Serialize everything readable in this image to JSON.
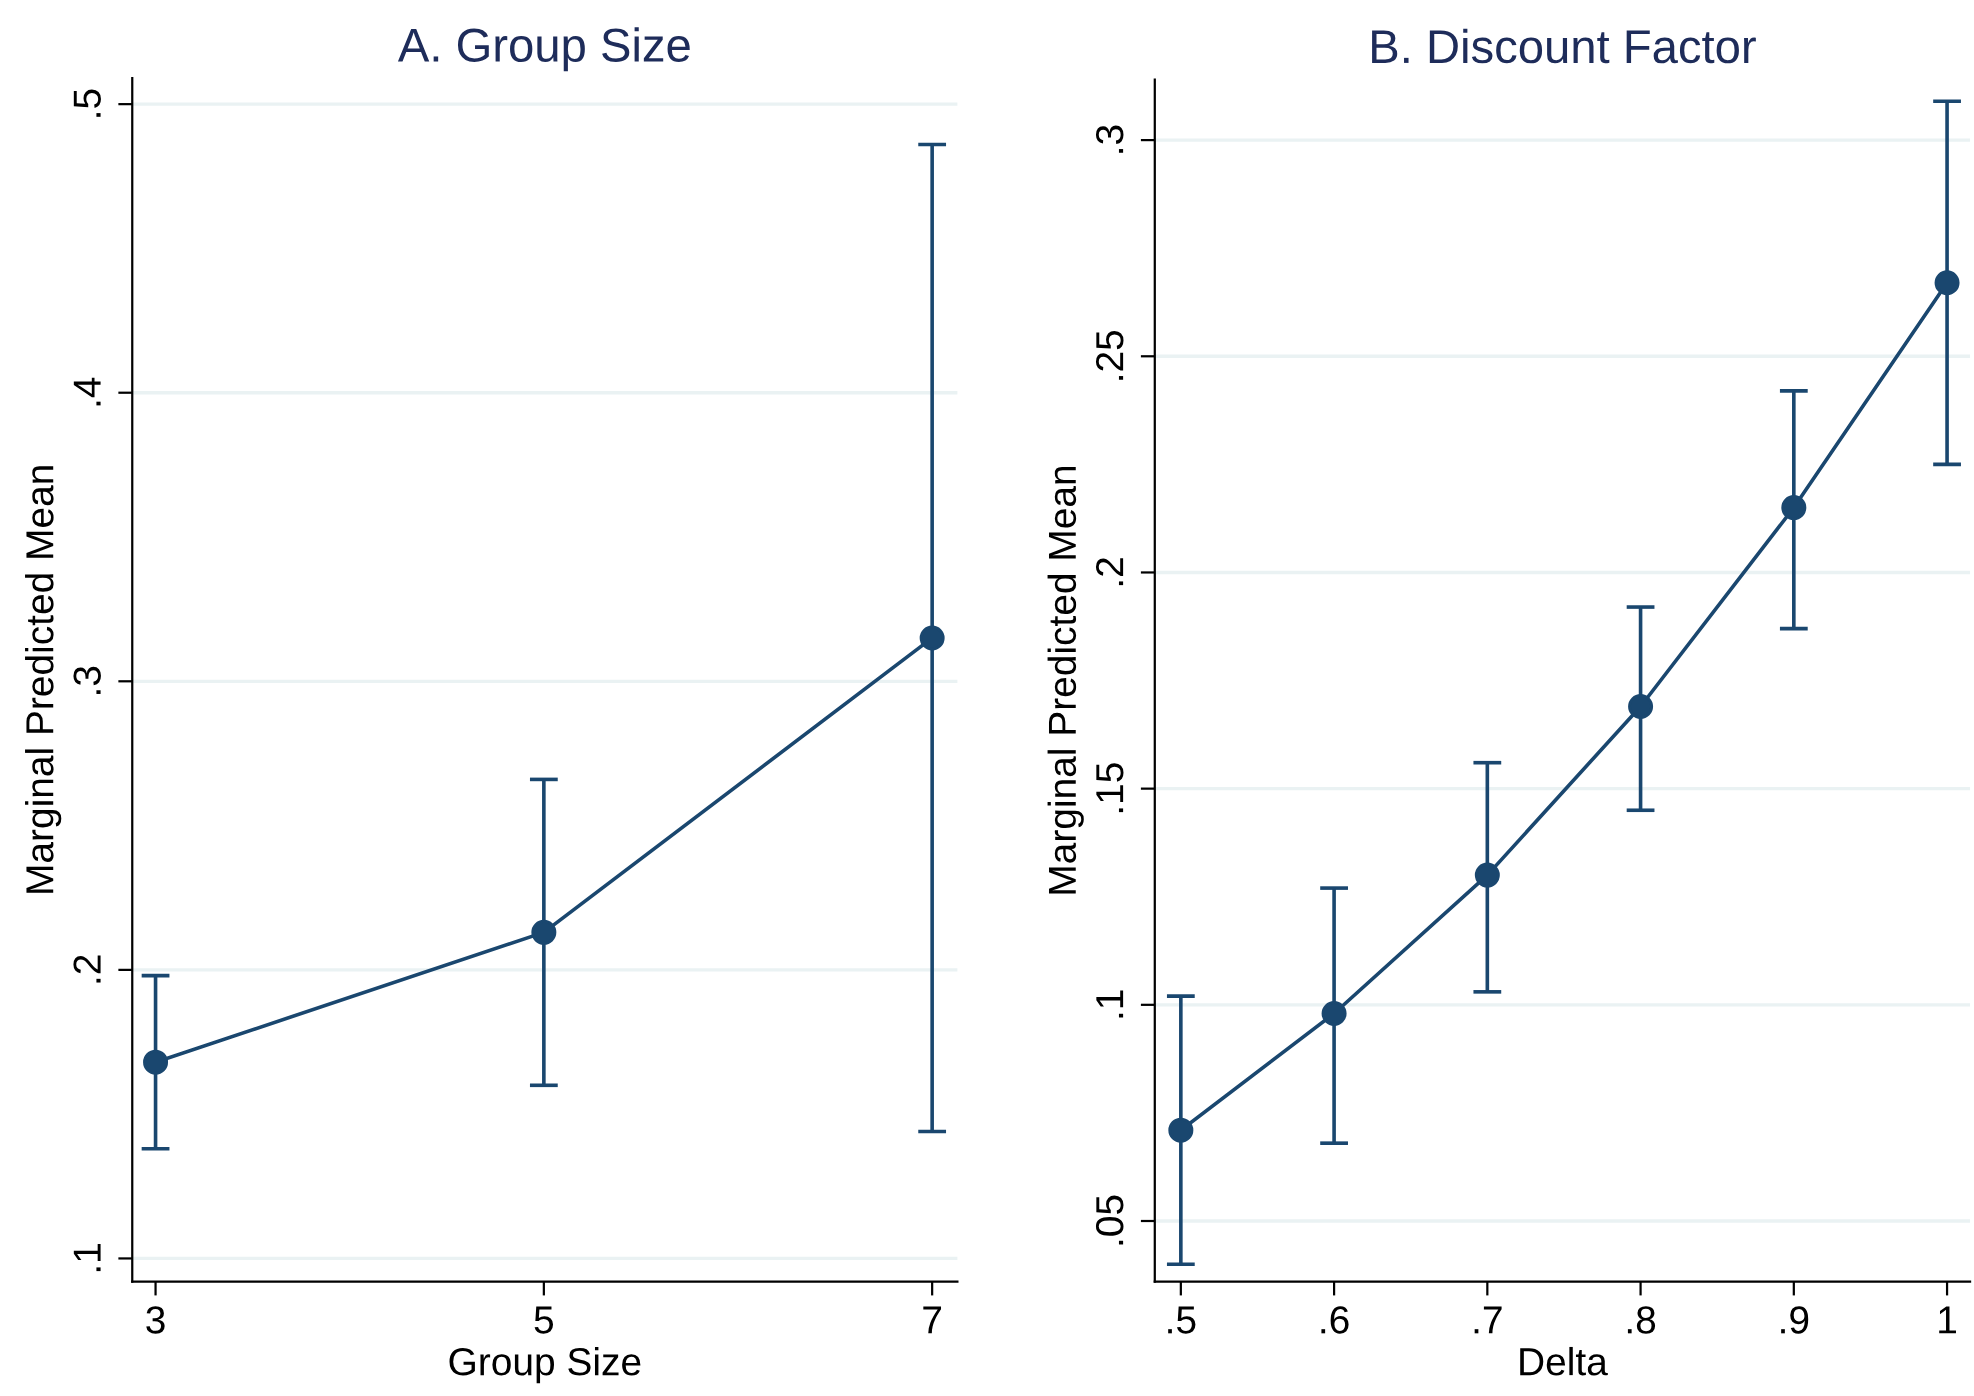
{
  "chart_data": [
    {
      "type": "line",
      "title": "A. Group Size",
      "xlabel": "Group Size",
      "ylabel": "Marginal Predicted Mean",
      "x": [
        3,
        5,
        7
      ],
      "series": [
        {
          "color": "#1a476f",
          "values": [
            0.168,
            0.213,
            0.315
          ],
          "errors": [
            [
              0.138,
              0.198
            ],
            [
              0.16,
              0.266
            ],
            [
              0.144,
              0.486
            ]
          ]
        }
      ],
      "xlim": [
        2.88,
        7.13
      ],
      "xticks": [
        3,
        5,
        7
      ],
      "ylim": [
        0.092,
        0.509
      ],
      "yticks": [
        {
          "value": 0.1,
          "label": ".1"
        },
        {
          "value": 0.2,
          "label": ".2"
        },
        {
          "value": 0.3,
          "label": ".3"
        },
        {
          "value": 0.4,
          "label": ".4"
        },
        {
          "value": 0.5,
          "label": ".5"
        }
      ],
      "grid": "y",
      "marker": "circle",
      "line_style": "solid",
      "legend": false
    },
    {
      "type": "line",
      "title": "B. Discount Factor",
      "xlabel": "Delta",
      "ylabel": "Marginal Predicted Mean",
      "x": [
        0.5,
        0.6,
        0.7,
        0.8,
        0.9,
        1
      ],
      "series": [
        {
          "color": "#1a476f",
          "values": [
            0.071,
            0.098,
            0.13,
            0.169,
            0.215,
            0.267
          ],
          "errors": [
            [
              0.04,
              0.102
            ],
            [
              0.068,
              0.127
            ],
            [
              0.103,
              0.156
            ],
            [
              0.145,
              0.192
            ],
            [
              0.187,
              0.242
            ],
            [
              0.225,
              0.309
            ]
          ]
        }
      ],
      "xlim": [
        0.483,
        1.015
      ],
      "xticks": [
        {
          "value": 0.5,
          "label": ".5"
        },
        {
          "value": 0.6,
          "label": ".6"
        },
        {
          "value": 0.7,
          "label": ".7"
        },
        {
          "value": 0.8,
          "label": ".8"
        },
        {
          "value": 0.9,
          "label": ".9"
        },
        1
      ],
      "ylim": [
        0.036,
        0.314
      ],
      "yticks": [
        {
          "value": 0.05,
          "label": ".05"
        },
        {
          "value": 0.1,
          "label": ".1"
        },
        {
          "value": 0.15,
          "label": ".15"
        },
        {
          "value": 0.2,
          "label": ".2"
        },
        {
          "value": 0.25,
          "label": ".25"
        },
        {
          "value": 0.3,
          "label": ".3"
        }
      ],
      "grid": "y",
      "marker": "circle",
      "line_style": "solid",
      "legend": false
    }
  ]
}
